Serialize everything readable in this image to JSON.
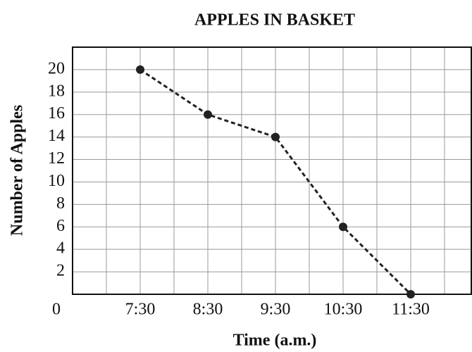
{
  "chart_data": {
    "type": "line",
    "title": "APPLES IN BASKET",
    "x_label": "Time (a.m.)",
    "y_label": "Number of Apples",
    "categories": [
      "7:30",
      "8:30",
      "9:30",
      "10:30",
      "11:30"
    ],
    "values": [
      20,
      16,
      14,
      6,
      0
    ],
    "color": "#222222",
    "ylim": [
      0,
      22
    ],
    "yticks": [
      0,
      2,
      4,
      6,
      8,
      10,
      12,
      14,
      16,
      18,
      20
    ],
    "grid": true
  }
}
